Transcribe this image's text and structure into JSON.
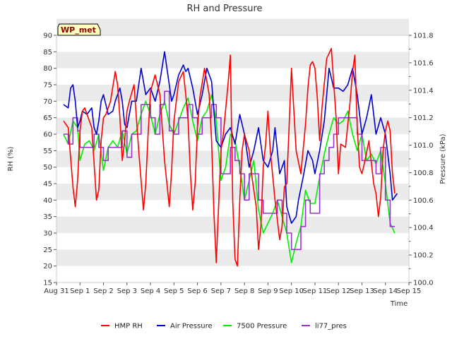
{
  "chart_data": {
    "type": "line",
    "title": "RH and Pressure",
    "xlabel": "Time",
    "ylabel_left": "RH (%)",
    "ylabel_right": "Pressure (kPa)",
    "badge": "WP_met",
    "x_ticks": [
      "Aug 31",
      "Sep 1",
      "Sep 2",
      "Sep 3",
      "Sep 4",
      "Sep 5",
      "Sep 6",
      "Sep 7",
      "Sep 8",
      "Sep 9",
      "Sep 10",
      "Sep 11",
      "Sep 12",
      "Sep 13",
      "Sep 14",
      "Sep 15"
    ],
    "xlim": [
      0,
      15
    ],
    "ylim_left": [
      15,
      90
    ],
    "ylim_right": [
      100.0,
      101.8
    ],
    "y_ticks_left": [
      "15",
      "20",
      "25",
      "30",
      "35",
      "40",
      "45",
      "50",
      "55",
      "60",
      "65",
      "70",
      "75",
      "80",
      "85",
      "90"
    ],
    "y_ticks_right": [
      "100.0",
      "100.2",
      "100.4",
      "100.6",
      "100.8",
      "101.0",
      "101.2",
      "101.4",
      "101.6",
      "101.8"
    ],
    "grid": "horizontal bands",
    "legend_position": "bottom",
    "colors": {
      "hmp_rh": "#ff0000",
      "air_pressure": "#0000cc",
      "pres7500": "#00ee00",
      "li77": "#9932cc",
      "band": "#ebebeb",
      "badge_bg": "#ffffc0"
    },
    "series": [
      {
        "name": "HMP RH",
        "axis": "left",
        "x": [
          0.3,
          0.5,
          0.7,
          0.8,
          0.9,
          1.0,
          1.1,
          1.2,
          1.3,
          1.5,
          1.7,
          1.8,
          1.9,
          2.0,
          2.1,
          2.3,
          2.5,
          2.6,
          2.7,
          2.8,
          2.9,
          3.0,
          3.1,
          3.3,
          3.5,
          3.7,
          3.8,
          3.9,
          4.0,
          4.2,
          4.4,
          4.6,
          4.8,
          4.9,
          5.0,
          5.2,
          5.4,
          5.5,
          5.6,
          5.7,
          5.8,
          5.9,
          6.0,
          6.1,
          6.3,
          6.5,
          6.6,
          6.7,
          6.8,
          6.9,
          7.0,
          7.1,
          7.3,
          7.4,
          7.5,
          7.6,
          7.7,
          7.8,
          7.9,
          8.0,
          8.2,
          8.3,
          8.5,
          8.6,
          8.7,
          8.8,
          8.9,
          9.0,
          9.1,
          9.3,
          9.5,
          9.6,
          9.7,
          9.8,
          9.9,
          10.0,
          10.2,
          10.4,
          10.6,
          10.7,
          10.8,
          10.9,
          11.0,
          11.1,
          11.2,
          11.3,
          11.5,
          11.7,
          11.9,
          12.0,
          12.1,
          12.3,
          12.5,
          12.6,
          12.7,
          12.8,
          12.9,
          13.0,
          13.1,
          13.3,
          13.5,
          13.6,
          13.7,
          13.8,
          13.9,
          14.0,
          14.1,
          14.2,
          14.3,
          14.4
        ],
        "values": [
          64,
          62,
          44,
          38,
          46,
          61,
          67,
          68,
          66,
          62,
          40,
          43,
          58,
          65,
          66,
          70,
          79,
          75,
          65,
          52,
          58,
          67,
          70,
          75,
          55,
          37,
          45,
          60,
          73,
          78,
          72,
          52,
          38,
          49,
          64,
          76,
          79,
          72,
          64,
          48,
          37,
          45,
          62,
          71,
          80,
          72,
          58,
          36,
          21,
          38,
          55,
          60,
          75,
          84,
          40,
          22,
          20,
          40,
          55,
          60,
          55,
          48,
          38,
          25,
          32,
          50,
          57,
          67,
          55,
          40,
          28,
          32,
          44,
          45,
          62,
          80,
          55,
          48,
          63,
          74,
          81,
          82,
          80,
          71,
          58,
          68,
          83,
          86,
          65,
          48,
          57,
          56,
          70,
          79,
          84,
          62,
          50,
          48,
          51,
          58,
          45,
          42,
          35,
          41,
          55,
          61,
          64,
          61,
          48,
          42
        ]
      },
      {
        "name": "Air Pressure",
        "axis": "left",
        "x": [
          0.3,
          0.5,
          0.6,
          0.7,
          0.8,
          0.9,
          1.0,
          1.1,
          1.3,
          1.5,
          1.6,
          1.7,
          1.8,
          1.9,
          2.0,
          2.2,
          2.4,
          2.5,
          2.6,
          2.7,
          2.8,
          2.9,
          3.0,
          3.2,
          3.4,
          3.5,
          3.6,
          3.8,
          4.0,
          4.2,
          4.4,
          4.6,
          4.8,
          4.9,
          5.0,
          5.2,
          5.4,
          5.5,
          5.6,
          5.8,
          6.0,
          6.2,
          6.4,
          6.6,
          6.8,
          6.9,
          7.0,
          7.2,
          7.4,
          7.6,
          7.8,
          8.0,
          8.2,
          8.4,
          8.6,
          8.8,
          9.0,
          9.2,
          9.3,
          9.5,
          9.7,
          9.8,
          10.0,
          10.2,
          10.3,
          10.5,
          10.7,
          10.9,
          11.0,
          11.2,
          11.4,
          11.5,
          11.6,
          11.8,
          12.0,
          12.2,
          12.4,
          12.6,
          12.8,
          13.0,
          13.2,
          13.4,
          13.6,
          13.8,
          14.0,
          14.2,
          14.3,
          14.5
        ],
        "values": [
          69,
          68,
          74,
          75,
          70,
          62,
          64,
          67,
          66,
          68,
          62,
          60,
          64,
          70,
          72,
          66,
          67,
          70,
          72,
          74,
          70,
          63,
          62,
          70,
          70,
          75,
          80,
          72,
          74,
          70,
          76,
          85,
          75,
          70,
          72,
          78,
          81,
          79,
          80,
          74,
          66,
          72,
          80,
          76,
          58,
          57,
          56,
          60,
          62,
          57,
          66,
          60,
          50,
          55,
          62,
          52,
          50,
          55,
          62,
          48,
          52,
          38,
          33,
          35,
          40,
          47,
          55,
          52,
          48,
          55,
          64,
          72,
          80,
          74,
          74,
          73,
          75,
          80,
          72,
          60,
          65,
          72,
          60,
          65,
          60,
          48,
          40,
          42
        ]
      },
      {
        "name": "7500 Pressure",
        "axis": "left",
        "x": [
          0.3,
          0.5,
          0.7,
          0.9,
          1.0,
          1.2,
          1.4,
          1.6,
          1.8,
          2.0,
          2.2,
          2.4,
          2.6,
          2.8,
          3.0,
          3.2,
          3.4,
          3.6,
          3.8,
          4.0,
          4.2,
          4.4,
          4.6,
          4.8,
          5.0,
          5.2,
          5.4,
          5.6,
          5.8,
          6.0,
          6.2,
          6.4,
          6.6,
          6.8,
          7.0,
          7.2,
          7.4,
          7.6,
          7.8,
          8.0,
          8.2,
          8.4,
          8.6,
          8.8,
          9.0,
          9.2,
          9.4,
          9.6,
          9.8,
          10.0,
          10.2,
          10.4,
          10.6,
          10.8,
          11.0,
          11.2,
          11.4,
          11.6,
          11.8,
          12.0,
          12.2,
          12.4,
          12.6,
          12.8,
          13.0,
          13.2,
          13.4,
          13.6,
          13.8,
          14.0,
          14.2,
          14.4
        ],
        "values": [
          60,
          57,
          64,
          62,
          52,
          57,
          58,
          55,
          60,
          49,
          56,
          58,
          56,
          61,
          54,
          60,
          61,
          66,
          70,
          66,
          60,
          66,
          70,
          63,
          60,
          64,
          68,
          71,
          64,
          58,
          65,
          67,
          72,
          64,
          46,
          50,
          60,
          58,
          50,
          40,
          46,
          52,
          37,
          30,
          33,
          36,
          40,
          35,
          30,
          21,
          27,
          32,
          43,
          39,
          39,
          47,
          54,
          60,
          65,
          63,
          64,
          67,
          60,
          55,
          60,
          52,
          54,
          51,
          55,
          45,
          33,
          30
        ]
      },
      {
        "name": "li77_pres",
        "axis": "left",
        "x": [
          0.3,
          0.5,
          0.7,
          0.9,
          1.0,
          1.2,
          1.4,
          1.6,
          1.8,
          2.0,
          2.2,
          2.4,
          2.6,
          2.8,
          3.0,
          3.2,
          3.4,
          3.6,
          3.8,
          4.0,
          4.2,
          4.4,
          4.6,
          4.8,
          5.0,
          5.2,
          5.4,
          5.6,
          5.8,
          6.0,
          6.2,
          6.4,
          6.6,
          6.8,
          7.0,
          7.2,
          7.4,
          7.6,
          7.8,
          8.0,
          8.2,
          8.4,
          8.6,
          8.8,
          9.0,
          9.2,
          9.4,
          9.6,
          9.8,
          10.0,
          10.2,
          10.4,
          10.6,
          10.8,
          11.0,
          11.2,
          11.4,
          11.6,
          11.8,
          12.0,
          12.2,
          12.4,
          12.6,
          12.8,
          13.0,
          13.2,
          13.4,
          13.6,
          13.8,
          14.0,
          14.2,
          14.4
        ],
        "values": [
          60,
          57,
          65,
          61,
          56,
          56,
          56,
          60,
          56,
          52,
          56,
          56,
          56,
          61,
          53,
          60,
          60,
          69,
          69,
          65,
          60,
          69,
          73,
          61,
          60,
          65,
          65,
          69,
          65,
          60,
          65,
          65,
          69,
          65,
          48,
          48,
          56,
          52,
          48,
          40,
          48,
          48,
          40,
          36,
          36,
          36,
          40,
          36,
          30,
          25,
          25,
          32,
          40,
          36,
          36,
          48,
          52,
          56,
          60,
          65,
          65,
          65,
          65,
          60,
          52,
          52,
          52,
          48,
          56,
          40,
          32,
          32
        ]
      }
    ]
  }
}
